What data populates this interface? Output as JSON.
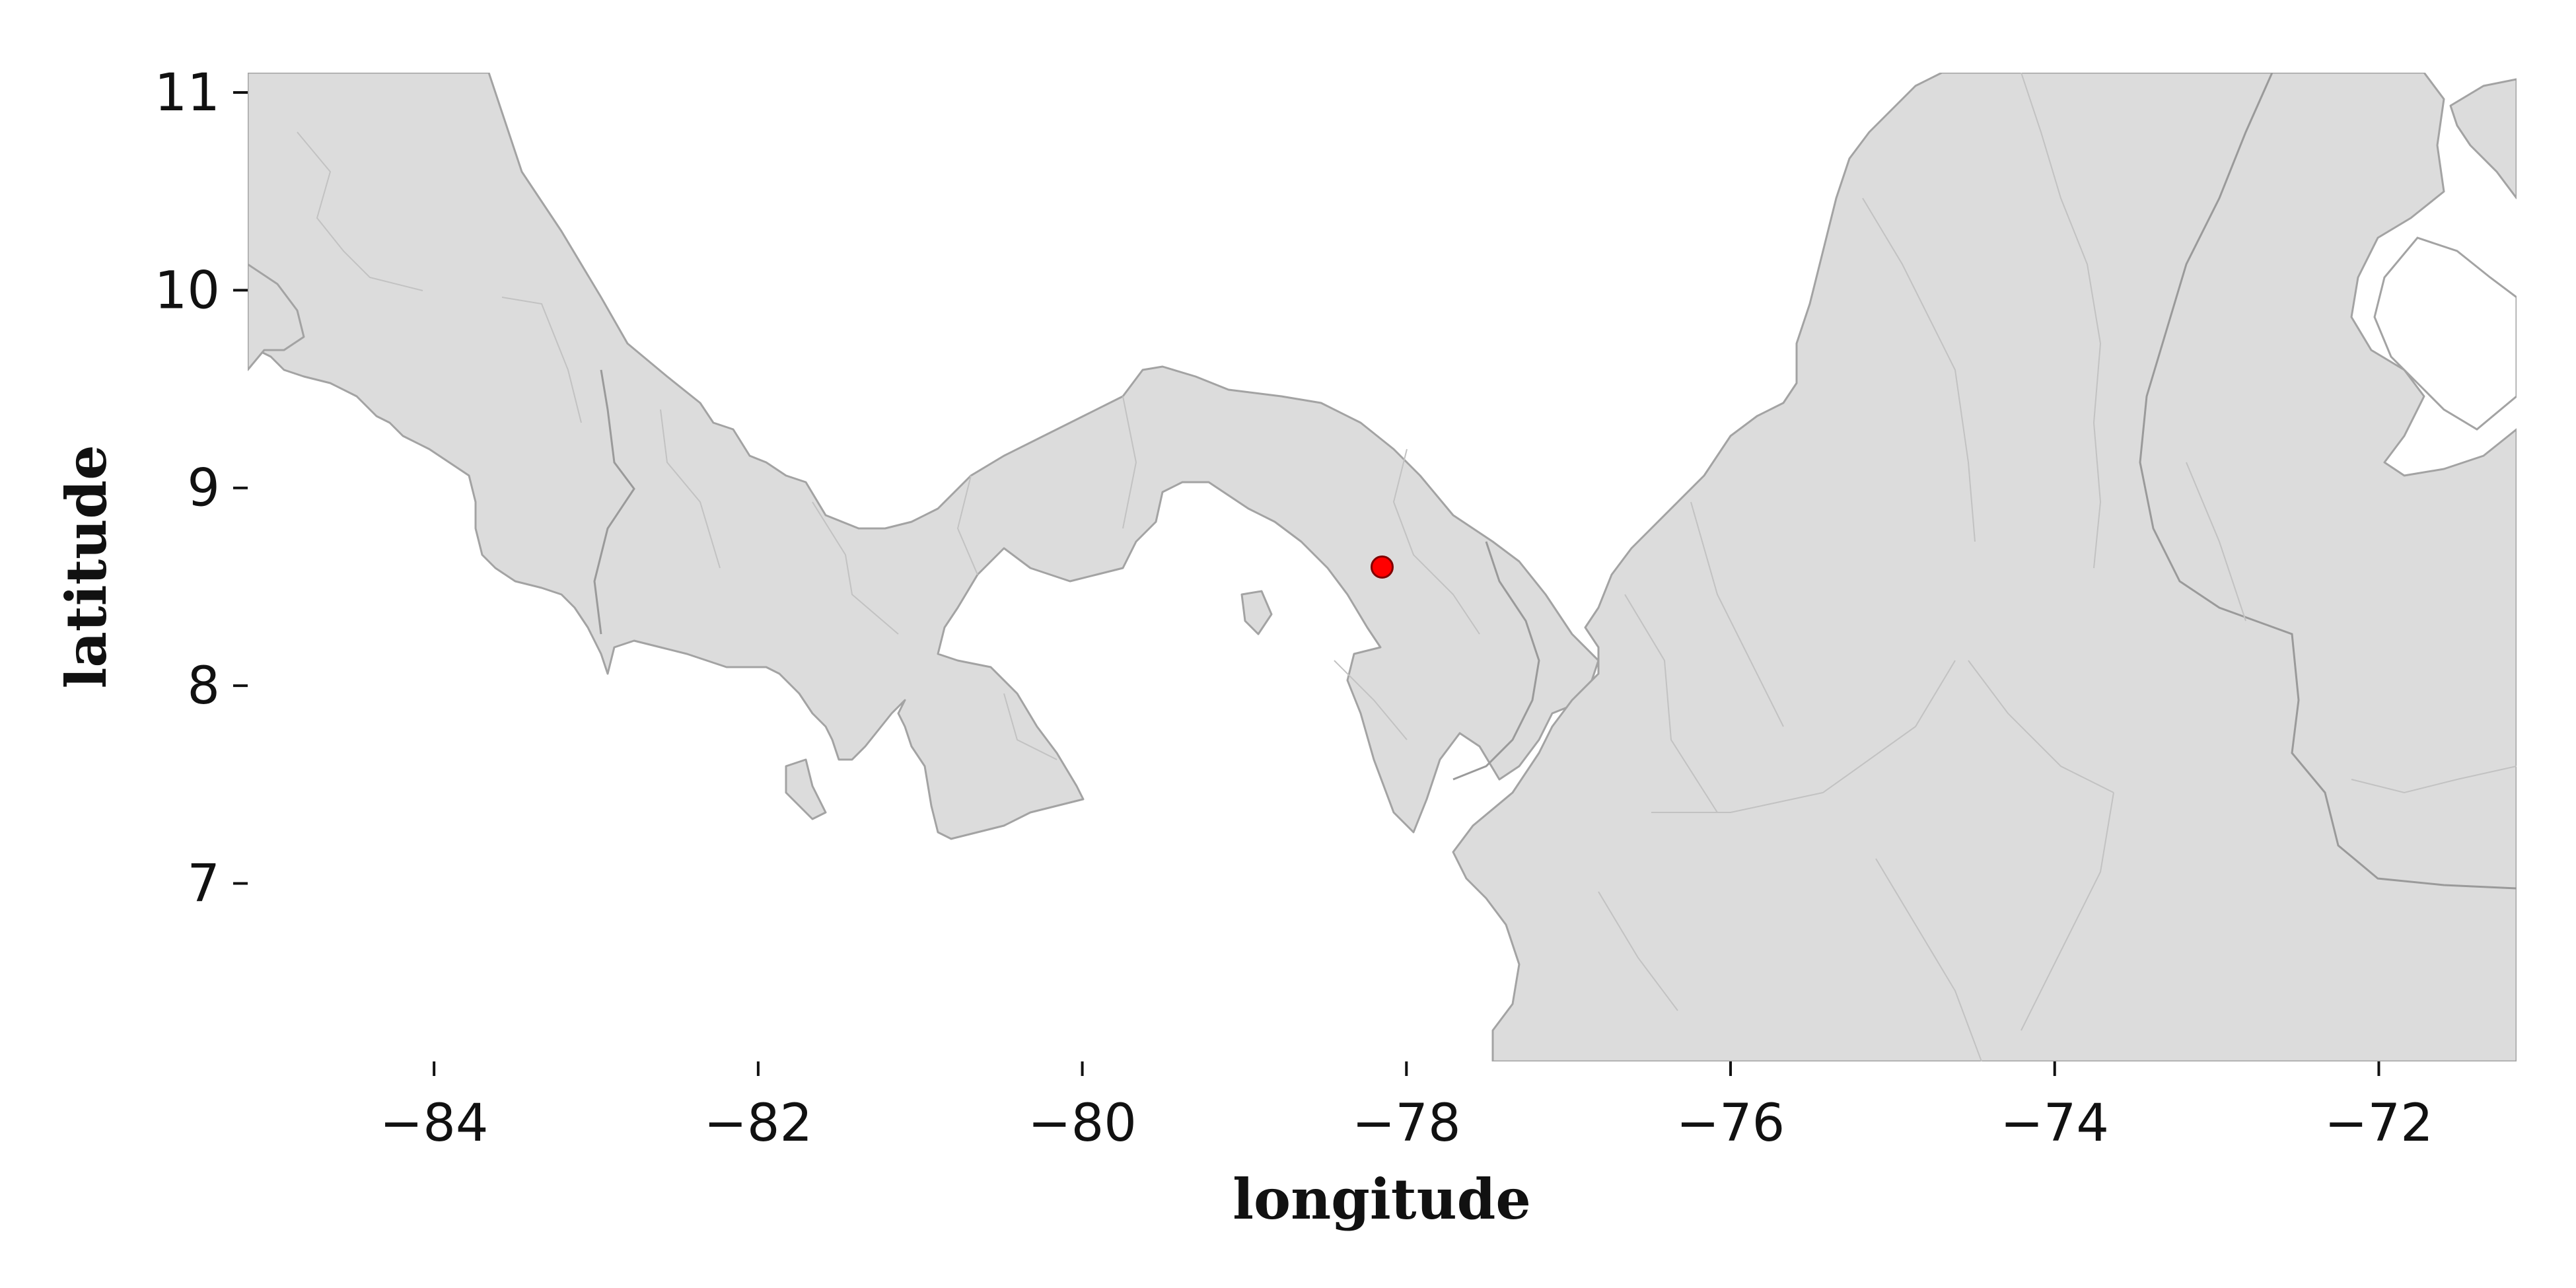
{
  "map": {
    "xlabel": "longitude",
    "ylabel": "latitude",
    "xlim": [
      -85.15,
      -71.15
    ],
    "ylim": [
      6.1,
      11.1
    ],
    "x_ticks": [
      -84,
      -82,
      -80,
      -78,
      -76,
      -74,
      -72
    ],
    "y_ticks": [
      7,
      8,
      9,
      10,
      11
    ],
    "land_color": "#dcdcdc",
    "border_color": "#a3a3a3",
    "marker": {
      "lon": -78.15,
      "lat": 8.6,
      "color": "#ff0000",
      "edge_color": "#800000"
    }
  }
}
